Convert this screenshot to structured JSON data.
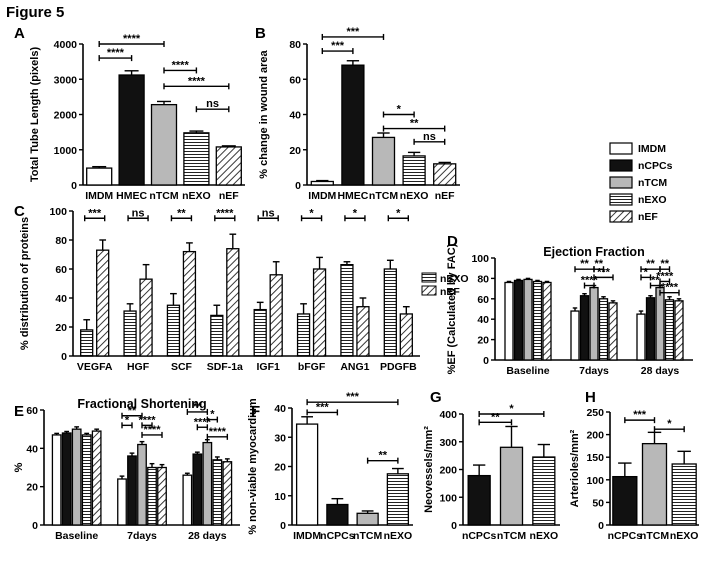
{
  "figure_title": "Figure 5",
  "legend": {
    "items": [
      {
        "label": "IMDM",
        "style": "white"
      },
      {
        "label": "nCPCs",
        "style": "black"
      },
      {
        "label": "nTCM",
        "style": "gray"
      },
      {
        "label": "nEXO",
        "style": "hlines"
      },
      {
        "label": "nEF",
        "style": "diag"
      }
    ]
  },
  "chart_data": [
    {
      "panel": "A",
      "type": "bar",
      "ylabel": "Total Tube Length (pixels)",
      "ylim": [
        0,
        4000
      ],
      "yticks": [
        0,
        1000,
        2000,
        3000,
        4000
      ],
      "categories": [
        "IMDM",
        "HMEC",
        "nTCM",
        "nEXO",
        "nEF"
      ],
      "styles": [
        "white",
        "black",
        "gray",
        "hlines",
        "diag"
      ],
      "values": [
        480,
        3120,
        2280,
        1480,
        1080
      ],
      "errors": [
        40,
        120,
        90,
        50,
        30
      ],
      "significance": [
        {
          "from": 0,
          "to": 2,
          "label": "****",
          "y": 4000
        },
        {
          "from": 0,
          "to": 1,
          "label": "****",
          "y": 3600
        },
        {
          "from": 2,
          "to": 3,
          "label": "****",
          "y": 3250
        },
        {
          "from": 2,
          "to": 4,
          "label": "****",
          "y": 2800
        },
        {
          "from": 3,
          "to": 4,
          "label": "ns",
          "y": 2150
        }
      ]
    },
    {
      "panel": "B",
      "type": "bar",
      "ylabel": "% change in wound area",
      "ylim": [
        0,
        80
      ],
      "yticks": [
        0,
        20,
        40,
        60,
        80
      ],
      "categories": [
        "IMDM",
        "HMEC",
        "nTCM",
        "nEXO",
        "nEF"
      ],
      "styles": [
        "white",
        "black",
        "gray",
        "hlines",
        "diag"
      ],
      "values": [
        2,
        68,
        27,
        16.5,
        12
      ],
      "errors": [
        0.5,
        2.5,
        2.5,
        2,
        0.8
      ],
      "significance": [
        {
          "from": 0,
          "to": 2,
          "label": "***",
          "y": 84
        },
        {
          "from": 0,
          "to": 1,
          "label": "***",
          "y": 76
        },
        {
          "from": 2,
          "to": 3,
          "label": "*",
          "y": 40
        },
        {
          "from": 2,
          "to": 4,
          "label": "**",
          "y": 32
        },
        {
          "from": 3,
          "to": 4,
          "label": "ns",
          "y": 24.5
        }
      ]
    },
    {
      "panel": "C",
      "type": "bar",
      "ylabel": "% distribution of proteins",
      "ylim": [
        0,
        100
      ],
      "yticks": [
        0,
        20,
        40,
        60,
        80,
        100
      ],
      "categories": [
        "VEGFA",
        "HGF",
        "SCF",
        "SDF-1a",
        "IGF1",
        "bFGF",
        "ANG1",
        "PDGFB"
      ],
      "series": [
        {
          "name": "nEXO",
          "style": "hlines",
          "values": [
            18,
            31,
            35,
            28,
            32,
            29,
            63,
            60
          ],
          "errors": [
            7,
            5,
            8,
            7,
            5,
            7,
            2,
            6
          ]
        },
        {
          "name": "nEF",
          "style": "diag",
          "values": [
            73,
            53,
            72,
            74,
            56,
            60,
            34,
            29
          ],
          "errors": [
            7,
            10,
            6,
            10,
            9,
            8,
            6,
            5
          ]
        }
      ],
      "significance_labels": [
        "***",
        "ns",
        "**",
        "****",
        "ns",
        "*",
        "*",
        "*"
      ]
    },
    {
      "panel": "D",
      "type": "bar",
      "title": "Ejection Fraction",
      "ylabel": "%EF (Calculated by FAC)",
      "ylim": [
        0,
        100
      ],
      "yticks": [
        0,
        20,
        40,
        60,
        80,
        100
      ],
      "categories": [
        "Baseline",
        "7days",
        "28 days"
      ],
      "series": [
        {
          "name": "IMDM",
          "style": "white",
          "values": [
            76,
            48,
            45
          ],
          "errors": [
            1,
            3,
            3
          ]
        },
        {
          "name": "nCPCs",
          "style": "black",
          "values": [
            78,
            63,
            61
          ],
          "errors": [
            1,
            2,
            2
          ]
        },
        {
          "name": "nTCM",
          "style": "gray",
          "values": [
            79,
            71,
            71
          ],
          "errors": [
            1,
            2,
            2
          ]
        },
        {
          "name": "nEXO",
          "style": "hlines",
          "values": [
            77,
            60,
            59
          ],
          "errors": [
            1,
            2,
            3
          ]
        },
        {
          "name": "nEF",
          "style": "diag",
          "values": [
            76,
            56,
            58
          ],
          "errors": [
            1,
            2,
            2
          ]
        }
      ],
      "significance": [
        {
          "group": 1,
          "from": 0,
          "to": 2,
          "label": "**",
          "y": 89
        },
        {
          "group": 1,
          "from": 2,
          "to": 3,
          "label": "**",
          "y": 89
        },
        {
          "group": 1,
          "from": 2,
          "to": 4,
          "label": "***",
          "y": 81
        },
        {
          "group": 1,
          "from": 1,
          "to": 2,
          "label": "****",
          "y": 73
        },
        {
          "group": 2,
          "from": 0,
          "to": 2,
          "label": "**",
          "y": 89
        },
        {
          "group": 2,
          "from": 2,
          "to": 3,
          "label": "**",
          "y": 89
        },
        {
          "group": 2,
          "from": 0,
          "to": 1,
          "label": "*",
          "y": 81
        },
        {
          "group": 2,
          "from": 2,
          "to": 3,
          "label": "****",
          "y": 77
        },
        {
          "group": 2,
          "from": 1,
          "to": 2,
          "label": "**",
          "y": 73
        },
        {
          "group": 2,
          "from": 2,
          "to": 4,
          "label": "****",
          "y": 66
        }
      ]
    },
    {
      "panel": "E",
      "type": "bar",
      "title": "Fractional Shortening",
      "ylabel": "%",
      "ylim": [
        0,
        60
      ],
      "yticks": [
        0,
        20,
        40,
        60
      ],
      "categories": [
        "Baseline",
        "7days",
        "28 days"
      ],
      "series": [
        {
          "name": "IMDM",
          "style": "white",
          "values": [
            47,
            24,
            26
          ],
          "errors": [
            0.8,
            1.5,
            1
          ]
        },
        {
          "name": "nCPCs",
          "style": "black",
          "values": [
            48,
            36,
            37
          ],
          "errors": [
            0.8,
            1.5,
            1
          ]
        },
        {
          "name": "nTCM",
          "style": "gray",
          "values": [
            50,
            42,
            43
          ],
          "errors": [
            1.2,
            1.5,
            1.5
          ]
        },
        {
          "name": "nEXO",
          "style": "hlines",
          "values": [
            47,
            30,
            34
          ],
          "errors": [
            0.8,
            2,
            1.5
          ]
        },
        {
          "name": "nEF",
          "style": "diag",
          "values": [
            49,
            30,
            33
          ],
          "errors": [
            1,
            1.5,
            1.5
          ]
        }
      ],
      "significance": [
        {
          "group": 1,
          "from": 0,
          "to": 2,
          "label": "**",
          "y": 57
        },
        {
          "group": 1,
          "from": 0,
          "to": 1,
          "label": "*",
          "y": 52
        },
        {
          "group": 1,
          "from": 2,
          "to": 3,
          "label": "****",
          "y": 52
        },
        {
          "group": 1,
          "from": 2,
          "to": 4,
          "label": "****",
          "y": 47
        },
        {
          "group": 2,
          "from": 0,
          "to": 2,
          "label": "**",
          "y": 59
        },
        {
          "group": 2,
          "from": 2,
          "to": 3,
          "label": "*",
          "y": 55
        },
        {
          "group": 2,
          "from": 1,
          "to": 2,
          "label": "****",
          "y": 51
        },
        {
          "group": 2,
          "from": 2,
          "to": 4,
          "label": "****",
          "y": 46
        }
      ]
    },
    {
      "panel": "F",
      "type": "bar",
      "ylabel": "% non-viable myocardium",
      "ylim": [
        0,
        40
      ],
      "yticks": [
        0,
        10,
        20,
        30,
        40
      ],
      "categories": [
        "IMDM",
        "nCPCs",
        "nTCM",
        "nEXO"
      ],
      "styles": [
        "white",
        "black",
        "gray",
        "hlines"
      ],
      "values": [
        34.5,
        7,
        4,
        17.5
      ],
      "errors": [
        2.5,
        2,
        0.8,
        1.8
      ],
      "significance": [
        {
          "from": 0,
          "to": 3,
          "label": "***",
          "y": 42
        },
        {
          "from": 0,
          "to": 1,
          "label": "***",
          "y": 38.5
        },
        {
          "from": 2,
          "to": 3,
          "label": "**",
          "y": 22
        }
      ]
    },
    {
      "panel": "G",
      "type": "bar",
      "ylabel": "Neovessels/mm²",
      "ylim": [
        0,
        400
      ],
      "yticks": [
        0,
        100,
        200,
        300,
        400
      ],
      "categories": [
        "nCPCs",
        "nTCM",
        "nEXO"
      ],
      "styles": [
        "black",
        "gray",
        "hlines"
      ],
      "values": [
        178,
        280,
        245
      ],
      "errors": [
        38,
        75,
        45
      ],
      "significance": [
        {
          "from": 0,
          "to": 2,
          "label": "*",
          "y": 400
        },
        {
          "from": 0,
          "to": 1,
          "label": "**",
          "y": 370
        }
      ]
    },
    {
      "panel": "H",
      "type": "bar",
      "ylabel": "Arterioles/mm²",
      "ylim": [
        0,
        250
      ],
      "yticks": [
        0,
        50,
        100,
        150,
        200,
        250
      ],
      "categories": [
        "nCPCs",
        "nTCM",
        "nEXO"
      ],
      "styles": [
        "black",
        "gray",
        "hlines"
      ],
      "values": [
        107,
        180,
        135
      ],
      "errors": [
        30,
        25,
        28
      ],
      "significance": [
        {
          "from": 0,
          "to": 1,
          "label": "***",
          "y": 232
        },
        {
          "from": 1,
          "to": 2,
          "label": "*",
          "y": 212
        }
      ]
    }
  ]
}
